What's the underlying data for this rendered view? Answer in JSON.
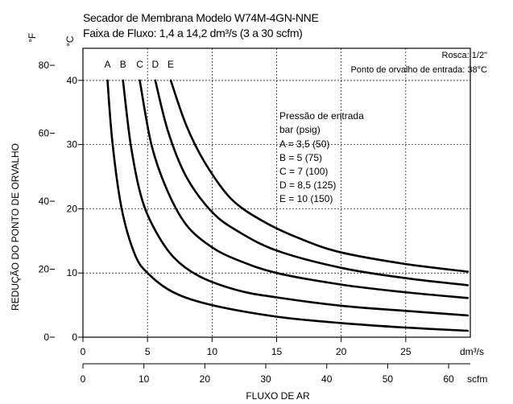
{
  "chart_data": {
    "type": "line",
    "title": "Secador de Membrana Modelo W74M-4GN-NNE",
    "subtitle": "Faixa de Fluxo: 1,4 a 14,2 dm³/s (3 a 30 scfm)",
    "ylabel": "REDUÇÃO DO PONTO DE ORVALHO",
    "xlabel": "FLUXO DE AR",
    "y_unit_c": "°C",
    "y_unit_f": "°F",
    "x_unit_top": "dm³/s",
    "x_unit_bottom": "scfm",
    "annotations": {
      "connection": "Rosca: 1/2\"",
      "inlet_dewpoint": "Ponto de orvalho de entrada: 38°C"
    },
    "legend_title": [
      "Pressão de entrada",
      "bar (psig)"
    ],
    "legend_entries": [
      "A = 3,5 (50)",
      "B = 5 (75)",
      "C = 7 (100)",
      "D = 8,5 (125)",
      "E = 10 (150)"
    ],
    "xlim": [
      0,
      30
    ],
    "ylim_c": [
      0,
      45
    ],
    "ylim_f": [
      0,
      85
    ],
    "x_ticks": [
      0,
      5,
      10,
      15,
      20,
      25
    ],
    "x_ticks_scfm": [
      0,
      10,
      20,
      30,
      40,
      50,
      60
    ],
    "y_ticks_c": [
      0,
      10,
      20,
      30,
      40
    ],
    "y_ticks_f": [
      0,
      20,
      40,
      60,
      80
    ],
    "grid": true,
    "series": [
      {
        "name": "A",
        "x": [
          1.9,
          2.3,
          3.0,
          4.0,
          5.0,
          7.0,
          10.0,
          15.0,
          20.0,
          25.0,
          29.8
        ],
        "y": [
          40,
          30,
          20,
          13,
          10,
          7,
          5,
          3.2,
          2.2,
          1.5,
          1.0
        ]
      },
      {
        "name": "B",
        "x": [
          3.1,
          3.7,
          4.5,
          5.5,
          7.0,
          9.0,
          12.0,
          15.0,
          20.0,
          25.0,
          29.8
        ],
        "y": [
          40,
          30,
          22,
          17,
          12.5,
          9.5,
          7.3,
          6.2,
          4.9,
          4.1,
          3.4
        ]
      },
      {
        "name": "C",
        "x": [
          4.4,
          5.3,
          6.5,
          8.0,
          10.0,
          12.0,
          15.0,
          20.0,
          25.0,
          29.8
        ],
        "y": [
          40,
          30,
          23,
          17.5,
          14,
          12,
          10,
          8.2,
          7.0,
          6.1
        ]
      },
      {
        "name": "D",
        "x": [
          5.6,
          6.6,
          8.0,
          10.0,
          12.0,
          15.0,
          20.0,
          25.0,
          29.8
        ],
        "y": [
          40,
          32,
          25,
          19.5,
          16.5,
          13.5,
          10.8,
          9.2,
          8.1
        ]
      },
      {
        "name": "E",
        "x": [
          6.8,
          8.0,
          9.5,
          11.5,
          14.0,
          17.0,
          20.0,
          25.0,
          29.8
        ],
        "y": [
          40,
          33,
          27,
          21.5,
          18,
          15.2,
          13.2,
          11.4,
          10.2
        ]
      }
    ],
    "colors": {
      "line": "#000000",
      "grid": "#000000",
      "background": "#ffffff"
    }
  }
}
